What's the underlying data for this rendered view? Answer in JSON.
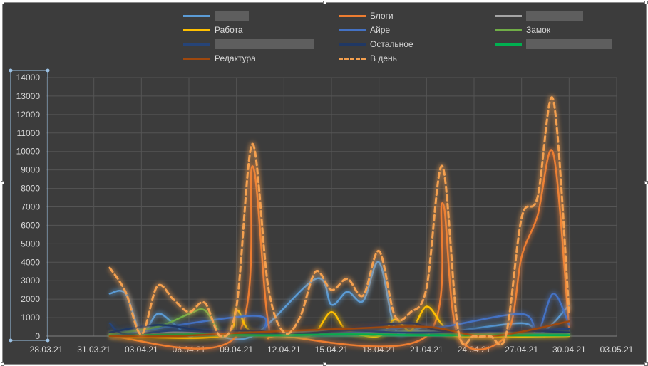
{
  "chart_data": {
    "type": "line",
    "x_ticks": [
      "28.03.21",
      "31.03.21",
      "03.04.21",
      "06.04.21",
      "09.04.21",
      "12.04.21",
      "15.04.21",
      "18.04.21",
      "21.04.21",
      "24.04.21",
      "27.04.21",
      "30.04.21",
      "03.05.21"
    ],
    "x_range": [
      "28.03.21",
      "03.05.21"
    ],
    "y_ticks": [
      "0",
      "1000",
      "2000",
      "3000",
      "4000",
      "5000",
      "6000",
      "7000",
      "8000",
      "9000",
      "10000",
      "11000",
      "12000",
      "13000",
      "14000"
    ],
    "ylim": [
      0,
      14000
    ],
    "grid": true,
    "legend_position": "top",
    "series": [
      {
        "name": "",
        "color": "#5b9bd5",
        "style": "solid",
        "points": [
          [
            "01.04.21",
            2300
          ],
          [
            "02.04.21",
            2300
          ],
          [
            "03.04.21",
            150
          ],
          [
            "04.04.21",
            1200
          ],
          [
            "05.04.21",
            700
          ],
          [
            "06.04.21",
            0
          ],
          [
            "07.04.21",
            200
          ],
          [
            "10.04.21",
            0
          ],
          [
            "14.04.21",
            3100
          ],
          [
            "15.04.21",
            1700
          ],
          [
            "16.04.21",
            2400
          ],
          [
            "17.04.21",
            1900
          ],
          [
            "18.04.21",
            4000
          ],
          [
            "19.04.21",
            400
          ],
          [
            "20.04.21",
            300
          ],
          [
            "21.04.21",
            500
          ],
          [
            "22.04.21",
            200
          ],
          [
            "27.04.21",
            700
          ],
          [
            "28.04.21",
            100
          ],
          [
            "29.04.21",
            700
          ],
          [
            "30.04.21",
            1700
          ]
        ]
      },
      {
        "name": "Блоги",
        "color": "#ed7d31",
        "style": "solid",
        "points": [
          [
            "01.04.21",
            0
          ],
          [
            "09.04.21",
            0
          ],
          [
            "10.04.21",
            9200
          ],
          [
            "11.04.21",
            800
          ],
          [
            "12.04.21",
            0
          ],
          [
            "21.04.21",
            0
          ],
          [
            "22.04.21",
            7200
          ],
          [
            "23.04.21",
            0
          ],
          [
            "26.04.21",
            0
          ],
          [
            "27.04.21",
            4300
          ],
          [
            "28.04.21",
            6500
          ],
          [
            "29.04.21",
            9900
          ],
          [
            "30.04.21",
            400
          ]
        ]
      },
      {
        "name": "",
        "color": "#a5a5a5",
        "style": "solid",
        "points": [
          [
            "01.04.21",
            100
          ],
          [
            "05.04.21",
            200
          ],
          [
            "10.04.21",
            100
          ],
          [
            "15.04.21",
            300
          ],
          [
            "18.04.21",
            200
          ],
          [
            "22.04.21",
            300
          ],
          [
            "27.04.21",
            100
          ],
          [
            "30.04.21",
            100
          ]
        ]
      },
      {
        "name": "Работа",
        "color": "#ffc000",
        "style": "solid",
        "points": [
          [
            "01.04.21",
            0
          ],
          [
            "08.04.21",
            0
          ],
          [
            "09.04.21",
            1400
          ],
          [
            "10.04.21",
            200
          ],
          [
            "13.04.21",
            0
          ],
          [
            "14.04.21",
            200
          ],
          [
            "15.04.21",
            1300
          ],
          [
            "16.04.21",
            300
          ],
          [
            "18.04.21",
            0
          ],
          [
            "19.04.21",
            900
          ],
          [
            "20.04.21",
            300
          ],
          [
            "21.04.21",
            1600
          ],
          [
            "22.04.21",
            600
          ],
          [
            "23.04.21",
            0
          ],
          [
            "30.04.21",
            0
          ]
        ]
      },
      {
        "name": "Айре",
        "color": "#4472c4",
        "style": "solid",
        "points": [
          [
            "01.04.21",
            0
          ],
          [
            "10.04.21",
            1100
          ],
          [
            "11.04.21",
            200
          ],
          [
            "14.04.21",
            100
          ],
          [
            "18.04.21",
            300
          ],
          [
            "20.04.21",
            500
          ],
          [
            "22.04.21",
            500
          ],
          [
            "27.04.21",
            1200
          ],
          [
            "28.04.21",
            200
          ],
          [
            "29.04.21",
            2300
          ],
          [
            "30.04.21",
            600
          ]
        ]
      },
      {
        "name": "Замок",
        "color": "#70ad47",
        "style": "solid",
        "points": [
          [
            "01.04.21",
            100
          ],
          [
            "04.04.21",
            500
          ],
          [
            "06.04.21",
            1200
          ],
          [
            "07.04.21",
            1400
          ],
          [
            "08.04.21",
            200
          ],
          [
            "09.04.21",
            100
          ],
          [
            "12.04.21",
            100
          ],
          [
            "16.04.21",
            100
          ],
          [
            "20.04.21",
            200
          ],
          [
            "24.04.21",
            100
          ],
          [
            "28.04.21",
            100
          ],
          [
            "30.04.21",
            100
          ]
        ]
      },
      {
        "name": "",
        "color": "#264478",
        "style": "solid",
        "points": [
          [
            "01.04.21",
            700
          ],
          [
            "02.04.21",
            100
          ],
          [
            "05.04.21",
            300
          ],
          [
            "08.04.21",
            200
          ],
          [
            "12.04.21",
            100
          ],
          [
            "16.04.21",
            300
          ],
          [
            "19.04.21",
            200
          ],
          [
            "22.04.21",
            200
          ],
          [
            "27.04.21",
            300
          ],
          [
            "30.04.21",
            400
          ]
        ]
      },
      {
        "name": "Остальное",
        "color": "#203864",
        "style": "solid",
        "points": [
          [
            "01.04.21",
            200
          ],
          [
            "04.04.21",
            600
          ],
          [
            "07.04.21",
            300
          ],
          [
            "10.04.21",
            300
          ],
          [
            "13.04.21",
            100
          ],
          [
            "17.04.21",
            500
          ],
          [
            "20.04.21",
            700
          ],
          [
            "22.04.21",
            300
          ],
          [
            "27.04.21",
            300
          ],
          [
            "30.04.21",
            200
          ]
        ]
      },
      {
        "name": "",
        "color": "#00b050",
        "style": "solid",
        "points": [
          [
            "01.04.21",
            0
          ],
          [
            "06.04.21",
            100
          ],
          [
            "11.04.21",
            50
          ],
          [
            "16.04.21",
            100
          ],
          [
            "21.04.21",
            50
          ],
          [
            "26.04.21",
            50
          ],
          [
            "30.04.21",
            50
          ]
        ]
      },
      {
        "name": "Редактура",
        "color": "#9e480e",
        "style": "solid",
        "points": [
          [
            "01.04.21",
            0
          ],
          [
            "05.04.21",
            0
          ],
          [
            "10.04.21",
            200
          ],
          [
            "16.04.21",
            400
          ],
          [
            "21.04.21",
            500
          ],
          [
            "25.04.21",
            0
          ],
          [
            "30.04.21",
            800
          ]
        ]
      },
      {
        "name": "В день",
        "color": "#f4a04f",
        "style": "dashed",
        "points": [
          [
            "01.04.21",
            3700
          ],
          [
            "02.04.21",
            2400
          ],
          [
            "03.04.21",
            100
          ],
          [
            "04.04.21",
            2700
          ],
          [
            "05.04.21",
            2000
          ],
          [
            "06.04.21",
            1300
          ],
          [
            "07.04.21",
            1800
          ],
          [
            "08.04.21",
            0
          ],
          [
            "09.04.21",
            1600
          ],
          [
            "10.04.21",
            10400
          ],
          [
            "11.04.21",
            2700
          ],
          [
            "12.04.21",
            200
          ],
          [
            "13.04.21",
            1000
          ],
          [
            "14.04.21",
            3500
          ],
          [
            "15.04.21",
            2500
          ],
          [
            "16.04.21",
            3100
          ],
          [
            "17.04.21",
            2200
          ],
          [
            "18.04.21",
            4600
          ],
          [
            "19.04.21",
            1100
          ],
          [
            "20.04.21",
            1300
          ],
          [
            "21.04.21",
            2600
          ],
          [
            "22.04.21",
            9200
          ],
          [
            "23.04.21",
            300
          ],
          [
            "24.04.21",
            0
          ],
          [
            "25.04.21",
            0
          ],
          [
            "26.04.21",
            0
          ],
          [
            "27.04.21",
            6400
          ],
          [
            "28.04.21",
            7500
          ],
          [
            "29.04.21",
            12800
          ],
          [
            "30.04.21",
            1300
          ]
        ]
      }
    ]
  },
  "legend": [
    {
      "label": "",
      "color": "#5b9bd5",
      "style": "solid",
      "redacted": true
    },
    {
      "label": "Блоги",
      "color": "#ed7d31",
      "style": "solid",
      "redacted": false
    },
    {
      "label": "",
      "color": "#a5a5a5",
      "style": "solid",
      "redacted": true
    },
    {
      "label": "Работа",
      "color": "#ffc000",
      "style": "solid",
      "redacted": false
    },
    {
      "label": "Айре",
      "color": "#4472c4",
      "style": "solid",
      "redacted": false
    },
    {
      "label": "Замок",
      "color": "#70ad47",
      "style": "solid",
      "redacted": false
    },
    {
      "label": "",
      "color": "#264478",
      "style": "solid",
      "redacted": true
    },
    {
      "label": "Остальное",
      "color": "#203864",
      "style": "solid",
      "redacted": false
    },
    {
      "label": "",
      "color": "#00b050",
      "style": "solid",
      "redacted": true
    },
    {
      "label": "Редактура",
      "color": "#9e480e",
      "style": "solid",
      "redacted": false
    },
    {
      "label": "В день",
      "color": "#f4a04f",
      "style": "dashed",
      "redacted": false
    }
  ]
}
